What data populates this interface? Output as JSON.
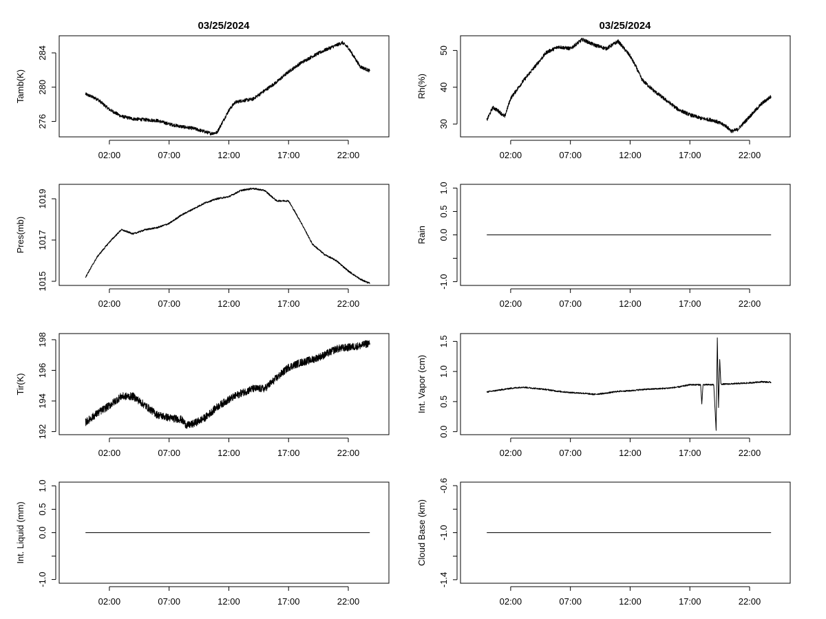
{
  "figure": {
    "titles": [
      "03/25/2024",
      "03/25/2024"
    ]
  },
  "chart_data": [
    {
      "id": "tamb",
      "type": "line",
      "title": "03/25/2024",
      "xlabel": "",
      "ylabel": "Tamb(K)",
      "xlim": [
        -2.2,
        25.4
      ],
      "ylim": [
        274.2,
        286.0
      ],
      "xticks": [
        2,
        7,
        12,
        17,
        22
      ],
      "xtick_labels": [
        "02:00",
        "07:00",
        "12:00",
        "17:00",
        "22:00"
      ],
      "yticks": [
        276,
        280,
        284
      ],
      "ytick_labels": [
        "276",
        "280",
        "284"
      ],
      "noise": 0.2,
      "series": [
        {
          "name": "Tamb",
          "x": [
            0,
            1,
            2,
            3,
            4,
            5,
            6,
            7,
            8,
            9,
            10,
            10.5,
            11,
            11.5,
            12,
            12.5,
            13,
            14,
            15,
            16,
            17,
            18,
            19,
            20,
            21,
            21.5,
            22,
            23,
            23.8
          ],
          "y": [
            279.2,
            278.6,
            277.4,
            276.6,
            276.3,
            276.2,
            276.1,
            275.7,
            275.4,
            275.2,
            274.8,
            274.6,
            274.7,
            276.0,
            277.3,
            278.2,
            278.4,
            278.6,
            279.6,
            280.6,
            281.8,
            282.8,
            283.6,
            284.3,
            284.9,
            285.2,
            284.6,
            282.4,
            281.9
          ]
        }
      ]
    },
    {
      "id": "rh",
      "type": "line",
      "title": "03/25/2024",
      "xlabel": "",
      "ylabel": "Rh(%)",
      "xlim": [
        -2.2,
        25.4
      ],
      "ylim": [
        26.5,
        54.0
      ],
      "xticks": [
        2,
        7,
        12,
        17,
        22
      ],
      "xtick_labels": [
        "02:00",
        "07:00",
        "12:00",
        "17:00",
        "22:00"
      ],
      "yticks": [
        30,
        40,
        50
      ],
      "ytick_labels": [
        "30",
        "40",
        "50"
      ],
      "noise": 0.5,
      "series": [
        {
          "name": "Rh",
          "x": [
            0,
            0.5,
            1,
            1.5,
            2,
            3,
            4,
            5,
            6,
            7,
            8,
            9,
            10,
            11,
            12,
            12.5,
            13,
            14,
            15,
            16,
            17,
            18,
            19,
            20,
            20.5,
            21,
            22,
            23,
            23.8
          ],
          "y": [
            31.0,
            34.5,
            33.5,
            32.0,
            37.0,
            41.5,
            45.5,
            49.5,
            51.0,
            50.5,
            53.0,
            51.5,
            50.5,
            52.5,
            48.5,
            45.5,
            42.0,
            39.0,
            36.5,
            34.0,
            32.5,
            31.5,
            31.0,
            29.5,
            28.0,
            28.5,
            32.0,
            35.5,
            37.5
          ]
        }
      ]
    },
    {
      "id": "pres",
      "type": "line",
      "title": "",
      "xlabel": "",
      "ylabel": "Pres(mb)",
      "xlim": [
        -2.2,
        25.4
      ],
      "ylim": [
        1014.8,
        1019.7
      ],
      "xticks": [
        2,
        7,
        12,
        17,
        22
      ],
      "xtick_labels": [
        "02:00",
        "07:00",
        "12:00",
        "17:00",
        "22:00"
      ],
      "yticks": [
        1015,
        1017,
        1019
      ],
      "ytick_labels": [
        "1015",
        "1017",
        "1019"
      ],
      "noise": 0.04,
      "series": [
        {
          "name": "Pres",
          "x": [
            0,
            1,
            2,
            3,
            4,
            5,
            6,
            7,
            8,
            9,
            10,
            11,
            12,
            13,
            14,
            15,
            16,
            17,
            18,
            19,
            20,
            21,
            22,
            23,
            23.8
          ],
          "y": [
            1015.2,
            1016.2,
            1016.9,
            1017.5,
            1017.3,
            1017.5,
            1017.6,
            1017.8,
            1018.2,
            1018.5,
            1018.8,
            1019.0,
            1019.1,
            1019.4,
            1019.5,
            1019.4,
            1018.9,
            1018.9,
            1017.9,
            1016.8,
            1016.3,
            1016.0,
            1015.5,
            1015.1,
            1014.9
          ]
        }
      ]
    },
    {
      "id": "rain",
      "type": "line",
      "title": "",
      "xlabel": "",
      "ylabel": "Rain",
      "xlim": [
        -2.2,
        25.4
      ],
      "ylim": [
        -1.08,
        1.08
      ],
      "xticks": [
        2,
        7,
        12,
        17,
        22
      ],
      "xtick_labels": [
        "02:00",
        "07:00",
        "12:00",
        "17:00",
        "22:00"
      ],
      "yticks": [
        -1.0,
        -0.5,
        0.0,
        0.5,
        1.0
      ],
      "ytick_labels": [
        "-1.0",
        "",
        "0.0",
        "0.5",
        "1.0"
      ],
      "noise": 0,
      "series": [
        {
          "name": "Rain",
          "x": [
            0,
            23.8
          ],
          "y": [
            0,
            0
          ]
        }
      ]
    },
    {
      "id": "tir",
      "type": "line",
      "title": "",
      "xlabel": "",
      "ylabel": "Tir(K)",
      "xlim": [
        -2.2,
        25.4
      ],
      "ylim": [
        191.8,
        198.4
      ],
      "xticks": [
        2,
        7,
        12,
        17,
        22
      ],
      "xtick_labels": [
        "02:00",
        "07:00",
        "12:00",
        "17:00",
        "22:00"
      ],
      "yticks": [
        192,
        194,
        196,
        198
      ],
      "ytick_labels": [
        "192",
        "194",
        "196",
        "198"
      ],
      "noise": 0.25,
      "series": [
        {
          "name": "Tir",
          "x": [
            0,
            1,
            2,
            3,
            4,
            5,
            6,
            7,
            8,
            8.5,
            9,
            10,
            11,
            12,
            13,
            14,
            15,
            16,
            17,
            18,
            19,
            20,
            21,
            22,
            23,
            23.8
          ],
          "y": [
            192.6,
            193.2,
            193.7,
            194.3,
            194.3,
            193.7,
            193.1,
            192.9,
            192.8,
            192.4,
            192.5,
            192.9,
            193.6,
            194.1,
            194.5,
            194.8,
            194.8,
            195.5,
            196.2,
            196.5,
            196.7,
            197.0,
            197.4,
            197.5,
            197.6,
            197.8
          ]
        }
      ]
    },
    {
      "id": "vapor",
      "type": "line",
      "title": "",
      "xlabel": "",
      "ylabel": "Int. Vapor (cm)",
      "xlim": [
        -2.2,
        25.4
      ],
      "ylim": [
        -0.05,
        1.63
      ],
      "xticks": [
        2,
        7,
        12,
        17,
        22
      ],
      "xtick_labels": [
        "02:00",
        "07:00",
        "12:00",
        "17:00",
        "22:00"
      ],
      "yticks": [
        0.0,
        0.5,
        1.0,
        1.5
      ],
      "ytick_labels": [
        "0.0",
        "0.5",
        "1.0",
        "1.5"
      ],
      "noise": 0.012,
      "series": [
        {
          "name": "Int. Vapor",
          "x": [
            0,
            1,
            2,
            3,
            4,
            5,
            6,
            7,
            8,
            9,
            10,
            11,
            12,
            13,
            14,
            15,
            16,
            17,
            17.9,
            18.0,
            18.1,
            19,
            19.2,
            19.3,
            19.4,
            19.5,
            19.6,
            20,
            21,
            22,
            23,
            23.8
          ],
          "y": [
            0.66,
            0.69,
            0.72,
            0.74,
            0.72,
            0.7,
            0.67,
            0.65,
            0.64,
            0.62,
            0.64,
            0.67,
            0.68,
            0.7,
            0.71,
            0.72,
            0.74,
            0.78,
            0.78,
            0.46,
            0.78,
            0.78,
            0.02,
            1.56,
            0.4,
            1.2,
            0.79,
            0.79,
            0.8,
            0.81,
            0.83,
            0.82
          ]
        }
      ]
    },
    {
      "id": "liquid",
      "type": "line",
      "title": "",
      "xlabel": "",
      "ylabel": "Int. Liquid (mm)",
      "xlim": [
        -2.2,
        25.4
      ],
      "ylim": [
        -1.08,
        1.08
      ],
      "xticks": [
        2,
        7,
        12,
        17,
        22
      ],
      "xtick_labels": [
        "02:00",
        "07:00",
        "12:00",
        "17:00",
        "22:00"
      ],
      "yticks": [
        -1.0,
        -0.5,
        0.0,
        0.5,
        1.0
      ],
      "ytick_labels": [
        "-1.0",
        "",
        "0.0",
        "0.5",
        "1.0"
      ],
      "noise": 0,
      "series": [
        {
          "name": "Int. Liquid",
          "x": [
            0,
            23.8
          ],
          "y": [
            0,
            0
          ]
        }
      ]
    },
    {
      "id": "cloudbase",
      "type": "line",
      "title": "",
      "xlabel": "",
      "ylabel": "Cloud Base (km)",
      "xlim": [
        -2.2,
        25.4
      ],
      "ylim": [
        -1.43,
        -0.57
      ],
      "xticks": [
        2,
        7,
        12,
        17,
        22
      ],
      "xtick_labels": [
        "02:00",
        "07:00",
        "12:00",
        "17:00",
        "22:00"
      ],
      "yticks": [
        -1.4,
        -1.2,
        -1.0,
        -0.8,
        -0.6
      ],
      "ytick_labels": [
        "-1.4",
        "",
        "-1.0",
        "",
        "-0.6"
      ],
      "noise": 0,
      "series": [
        {
          "name": "Cloud Base",
          "x": [
            0,
            23.8
          ],
          "y": [
            -1.0,
            -1.0
          ]
        }
      ]
    }
  ]
}
